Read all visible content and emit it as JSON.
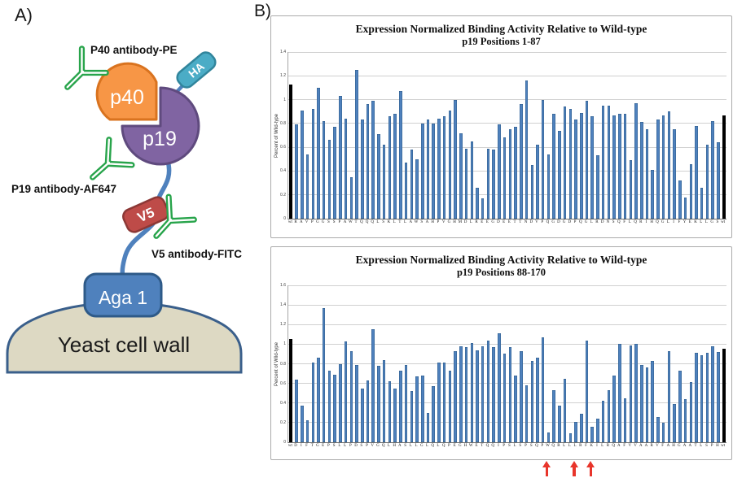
{
  "panel_a": {
    "label": "A)",
    "labels": {
      "p40_antibody": "P40 antibody-PE",
      "p19_antibody": "P19 antibody-AF647",
      "v5_antibody": "V5 antibody-FITC",
      "p40": "p40",
      "p19": "p19",
      "ha": "HA",
      "v5": "V5",
      "aga1": "Aga 1",
      "yeast_wall": "Yeast cell wall"
    },
    "colors": {
      "p40_fill": "#F79646",
      "p40_stroke": "#D9731F",
      "p19_fill": "#8064A2",
      "p19_stroke": "#5F4A7E",
      "ha_fill": "#4BACC6",
      "ha_stroke": "#31859C",
      "v5_fill": "#BE4B48",
      "v5_stroke": "#8C3836",
      "aga1_fill": "#4F81BD",
      "aga1_stroke": "#2E5A88",
      "wall_fill": "#DDD9C3",
      "wall_stroke": "#3A5F8B",
      "antibody_green": "#28A44B",
      "linker_blue": "#4F81BD"
    }
  },
  "panel_b": {
    "label": "B)"
  },
  "chart_data": [
    {
      "type": "bar",
      "title": "Expression Normalized Binding Activity Relative to Wild-type",
      "subtitle": "p19 Positions 1-87",
      "ylabel": "Percent of Wild-type",
      "ylim": [
        0,
        1.4
      ],
      "yticks": [
        0,
        0.2,
        0.4,
        0.6,
        0.8,
        1,
        1.2,
        1.4
      ],
      "grid": true,
      "legend": "none",
      "bar_color": "#4F81BD",
      "wt_bar_color": "#000000",
      "categories": [
        "wt",
        "R",
        "A",
        "V",
        "P",
        "G",
        "G",
        "S",
        "S",
        "P",
        "A",
        "W",
        "T",
        "Q",
        "Q",
        "Q",
        "L",
        "S",
        "K",
        "L",
        "T",
        "L",
        "A",
        "W",
        "S",
        "A",
        "H",
        "P",
        "V",
        "G",
        "H",
        "M",
        "D",
        "L",
        "R",
        "E",
        "E",
        "G",
        "D",
        "E",
        "E",
        "T",
        "T",
        "N",
        "D",
        "V",
        "P",
        "Q",
        "G",
        "D",
        "G",
        "D",
        "P",
        "Q",
        "G",
        "L",
        "R",
        "D",
        "N",
        "S",
        "Q",
        "F",
        "L",
        "Q",
        "R",
        "I",
        "H",
        "Q",
        "G",
        "L",
        "I",
        "F",
        "Y",
        "E",
        "K",
        "L",
        "L",
        "G",
        "S",
        "wt"
      ],
      "values": [
        1.13,
        0.79,
        0.91,
        0.54,
        0.92,
        1.1,
        0.82,
        0.66,
        0.77,
        1.03,
        0.84,
        0.35,
        1.25,
        0.83,
        0.96,
        0.99,
        0.71,
        0.62,
        0.86,
        0.88,
        1.07,
        0.47,
        0.58,
        0.5,
        0.8,
        0.83,
        0.8,
        0.84,
        0.86,
        0.91,
        1.0,
        0.72,
        0.59,
        0.65,
        0.26,
        0.17,
        0.59,
        0.58,
        0.79,
        0.68,
        0.75,
        0.77,
        0.96,
        1.16,
        0.45,
        0.62,
        1.0,
        0.54,
        0.88,
        0.74,
        0.94,
        0.92,
        0.83,
        0.89,
        0.99,
        0.86,
        0.53,
        0.95,
        0.95,
        0.87,
        0.88,
        0.88,
        0.49,
        0.97,
        0.81,
        0.75,
        0.41,
        0.83,
        0.87,
        0.9,
        0.75,
        0.32,
        0.18,
        0.46,
        0.78,
        0.26,
        0.62,
        0.82,
        0.64,
        0.87
      ]
    },
    {
      "type": "bar",
      "title": "Expression Normalized Binding Activity Relative to Wild-type",
      "subtitle": "p19 Positions 88-170",
      "ylabel": "Percent of Wild-type",
      "ylim": [
        0,
        1.6
      ],
      "yticks": [
        0,
        0.2,
        0.4,
        0.6,
        0.8,
        1,
        1.2,
        1.4,
        1.6
      ],
      "grid": true,
      "legend": "none",
      "bar_color": "#4F81BD",
      "wt_bar_color": "#000000",
      "categories": [
        "wt",
        "D",
        "I",
        "F",
        "T",
        "G",
        "E",
        "P",
        "S",
        "L",
        "L",
        "P",
        "D",
        "S",
        "P",
        "V",
        "G",
        "Q",
        "L",
        "H",
        "A",
        "S",
        "L",
        "L",
        "G",
        "L",
        "Q",
        "L",
        "Q",
        "P",
        "E",
        "G",
        "H",
        "W",
        "E",
        "T",
        "Q",
        "Q",
        "I",
        "P",
        "S",
        "L",
        "S",
        "P",
        "S",
        "Q",
        "P",
        "W",
        "Q",
        "R",
        "L",
        "L",
        "L",
        "R",
        "F",
        "K",
        "I",
        "L",
        "R",
        "Q",
        "A",
        "F",
        "V",
        "V",
        "A",
        "A",
        "R",
        "V",
        "F",
        "A",
        "H",
        "G",
        "A",
        "A",
        "T",
        "L",
        "S",
        "P",
        "H",
        "wt"
      ],
      "values": [
        1.05,
        0.64,
        0.37,
        0.22,
        0.81,
        0.86,
        1.37,
        0.73,
        0.69,
        0.8,
        1.03,
        0.93,
        0.79,
        0.55,
        0.63,
        1.15,
        0.78,
        0.84,
        0.62,
        0.55,
        0.73,
        0.79,
        0.52,
        0.67,
        0.68,
        0.3,
        0.57,
        0.81,
        0.81,
        0.73,
        0.93,
        0.98,
        0.97,
        1.01,
        0.94,
        0.98,
        1.04,
        0.97,
        1.11,
        0.9,
        0.97,
        0.68,
        0.93,
        0.58,
        0.83,
        0.86,
        1.07,
        0.1,
        0.53,
        0.37,
        0.65,
        0.09,
        0.21,
        0.29,
        1.04,
        0.16,
        0.24,
        0.42,
        0.53,
        0.68,
        1.0,
        0.45,
        0.99,
        1.0,
        0.79,
        0.76,
        0.83,
        0.26,
        0.2,
        0.93,
        0.39,
        0.73,
        0.44,
        0.61,
        0.91,
        0.89,
        0.91,
        0.98,
        0.92,
        0.95
      ],
      "arrows": {
        "color": "#E8352B",
        "indices": [
          47,
          52,
          55
        ],
        "residues": [
          "W",
          "L",
          "K"
        ]
      }
    }
  ]
}
